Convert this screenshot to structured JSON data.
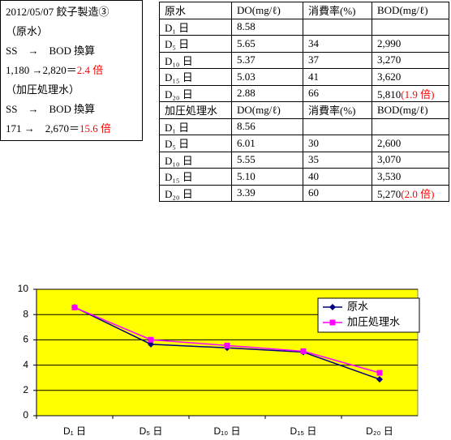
{
  "note": {
    "lines": [
      {
        "text": "2012/05/07 餃子製造③"
      },
      {
        "text": "（原水）"
      },
      {
        "text": "SS　→　BOD 換算"
      },
      {
        "text": "1,180 →2,820＝",
        "highlight": "2.4 倍"
      },
      {
        "text": "（加圧処理水）"
      },
      {
        "text": "SS　→　BOD 換算"
      },
      {
        "text": "171 →　2,670＝",
        "highlight": "15.6 倍"
      }
    ]
  },
  "table": {
    "sections": [
      {
        "header": [
          "原水",
          "DO(mg/ℓ)",
          "消費率(%)",
          "BOD(mg/ℓ)"
        ],
        "rows": [
          {
            "cells": [
              "D₁ 日",
              "8.58",
              null,
              null
            ]
          },
          {
            "cells": [
              "D₅ 日",
              "5.65",
              "34",
              "2,990"
            ]
          },
          {
            "cells": [
              "D₁₀ 日",
              "5.37",
              "37",
              "3,270"
            ]
          },
          {
            "cells": [
              "D₁₅ 日",
              "5.03",
              "41",
              "3,620"
            ]
          },
          {
            "cells": [
              "D₂₀ 日",
              "2.88",
              "66",
              "5,810"
            ],
            "highlight": "(1.9 倍)"
          }
        ]
      },
      {
        "header": [
          "加圧処理水",
          "DO(mg/ℓ)",
          "消費率(%)",
          "BOD(mg/ℓ)"
        ],
        "rows": [
          {
            "cells": [
              "D₁ 日",
              "8.56",
              null,
              null
            ]
          },
          {
            "cells": [
              "D₅ 日",
              "6.01",
              "30",
              "2,600"
            ]
          },
          {
            "cells": [
              "D₁₀ 日",
              "5.55",
              "35",
              "3,070"
            ]
          },
          {
            "cells": [
              "D₁₅ 日",
              "5.10",
              "40",
              "3,530"
            ]
          },
          {
            "cells": [
              "D₂₀ 日",
              "3.39",
              "60",
              "5,270"
            ],
            "highlight": "(2.0 倍)"
          }
        ]
      }
    ]
  },
  "chart_data": {
    "type": "line",
    "categories": [
      "D₁ 日",
      "D₅ 日",
      "D₁₀ 日",
      "D₁₅ 日",
      "D₂₀ 日"
    ],
    "series": [
      {
        "name": "原水",
        "color": "#000080",
        "marker": "diamond",
        "values": [
          8.58,
          5.65,
          5.37,
          5.03,
          2.88
        ]
      },
      {
        "name": "加圧処理水",
        "color": "#ff00ff",
        "marker": "square",
        "values": [
          8.56,
          6.01,
          5.55,
          5.1,
          3.39
        ]
      }
    ],
    "ylim": [
      0,
      10
    ],
    "yticks": [
      0,
      2,
      4,
      6,
      8,
      10
    ],
    "grid": true,
    "background": "#ffff00",
    "legend": "upper right"
  }
}
